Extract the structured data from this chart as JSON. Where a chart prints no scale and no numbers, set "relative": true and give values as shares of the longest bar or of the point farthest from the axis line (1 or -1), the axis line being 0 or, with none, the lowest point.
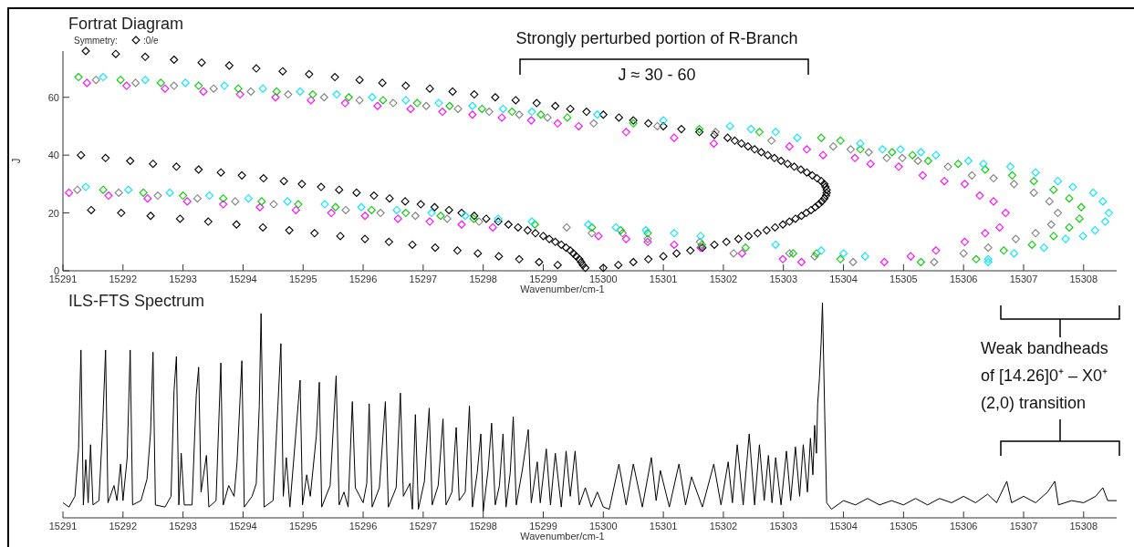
{
  "chart_data": [
    {
      "type": "scatter",
      "title": "Fortrat Diagram",
      "xlabel": "Wavenumber/cm-1",
      "ylabel": "J",
      "xlim": [
        15291,
        15308.55
      ],
      "ylim": [
        0,
        76
      ],
      "xticks": [
        15291,
        15292,
        15293,
        15294,
        15295,
        15296,
        15297,
        15298,
        15299,
        15300,
        15301,
        15302,
        15303,
        15304,
        15305,
        15306,
        15307,
        15308
      ],
      "yticks": [
        0,
        20,
        40,
        60
      ],
      "marker": "diamond",
      "legend": "top left",
      "legend_title": "Symmetry:",
      "annotations": [
        "Strongly perturbed portion of R-Branch",
        "J ≈ 30 - 60"
      ],
      "series": [
        {
          "name": ":0/e",
          "color": "#000000",
          "x": [
            15291.3,
            15291.71,
            15292.12,
            15292.5,
            15292.89,
            15293.26,
            15293.63,
            15293.98,
            15294.34,
            15294.68,
            15294.98,
            15295.3,
            15295.6,
            15295.89,
            15296.18,
            15296.44,
            15296.7,
            15296.96,
            15297.19,
            15297.43,
            15297.64,
            15297.85,
            15298.05,
            15298.25,
            15298.42,
            15298.58,
            15298.74,
            15298.87,
            15299.0,
            15299.1,
            15299.2,
            15299.3,
            15299.38,
            15299.45,
            15299.5,
            15299.55,
            15299.6,
            15299.63,
            15299.66,
            15299.7
          ],
          "values": [
            40,
            39,
            38,
            37,
            36,
            35,
            34,
            33,
            32,
            31,
            30,
            29,
            28,
            27,
            26,
            25,
            24,
            23,
            22,
            21,
            20,
            19,
            18,
            17,
            16,
            15,
            14,
            13,
            12,
            11,
            10,
            9,
            8,
            7,
            6,
            5,
            4,
            3,
            2,
            1
          ]
        },
        {
          "color": "#000000",
          "x": [
            15300.0,
            15300.25,
            15300.5,
            15300.75,
            15301.0,
            15301.22,
            15301.45,
            15301.65,
            15301.85,
            15302.05,
            15302.25,
            15302.42,
            15302.57,
            15302.72,
            15302.86,
            15302.99,
            15303.1,
            15303.2,
            15303.3,
            15303.38,
            15303.46,
            15303.53,
            15303.59,
            15303.64,
            15303.68,
            15303.71,
            15303.72,
            15303.72,
            15303.7,
            15303.68,
            15303.63,
            15303.56,
            15303.48,
            15303.39,
            15303.29,
            15303.18,
            15303.07,
            15302.96,
            15302.85,
            15302.74,
            15302.63,
            15302.52,
            15302.41,
            15302.3,
            15302.19,
            15302.07,
            15301.85,
            15301.6,
            15301.3,
            15301.0,
            15300.75,
            15300.5,
            15300.26,
            15300.0,
            15299.72,
            15299.45,
            15299.2,
            15298.89,
            15298.54,
            15298.2,
            15297.85,
            15297.49,
            15297.11,
            15296.71,
            15296.32,
            15295.94,
            15295.53,
            15295.1,
            15294.66,
            15294.22,
            15293.77,
            15293.31,
            15292.85,
            15292.37,
            15291.88,
            15291.38
          ],
          "values": [
            1,
            2,
            3,
            4,
            5,
            6,
            7,
            8,
            9,
            10,
            11,
            12,
            13,
            14,
            15,
            16,
            17,
            18,
            19,
            20,
            21,
            22,
            23,
            24,
            25,
            26,
            27,
            28,
            29,
            30,
            31,
            32,
            33,
            34,
            35,
            36,
            37,
            38,
            39,
            40,
            41,
            42,
            43,
            44,
            45,
            46,
            47,
            48,
            49,
            50,
            51,
            52,
            53,
            54,
            55,
            56,
            57,
            58,
            59,
            60,
            61,
            62,
            63,
            64,
            65,
            66,
            67,
            68,
            69,
            70,
            71,
            72,
            73,
            74,
            75,
            76
          ]
        },
        {
          "color": "#000000",
          "x": [
            15291.47,
            15291.97,
            15292.46,
            15292.95,
            15293.42,
            15293.89,
            15294.33,
            15294.77,
            15295.19,
            15295.62,
            15296.03,
            15296.43,
            15296.82,
            15297.2,
            15297.57,
            15297.91,
            15298.26,
            15298.6,
            15298.93,
            15299.24
          ],
          "values": [
            21,
            20,
            19,
            18,
            17,
            16,
            15,
            14,
            13,
            12,
            11,
            10,
            9,
            8,
            7,
            6,
            5,
            4,
            3,
            2
          ]
        },
        {
          "color": "#ff00ff",
          "x": [
            15291.4,
            15292.06,
            15292.7,
            15293.34,
            15293.95,
            15294.54,
            15295.13,
            15295.7,
            15296.24,
            15296.79,
            15297.32,
            15297.82,
            15298.31,
            15298.8,
            15299.24,
            15299.59,
            15300.38,
            15301.18,
            15301.84,
            15303.1,
            15303.39,
            15303.66,
            15304.19,
            15304.45,
            15304.92,
            15305.32,
            15305.68,
            15306.02,
            15306.27,
            15306.5,
            15306.7,
            15306.6,
            15306.36,
            15306.02,
            15305.54,
            15305.12,
            15304.68
          ],
          "values": [
            65,
            64,
            63,
            62,
            61,
            60,
            59,
            58,
            57,
            56,
            55,
            54,
            53,
            52,
            51,
            50,
            48,
            46,
            44,
            43,
            42,
            40,
            39,
            37,
            36,
            33,
            31,
            30,
            26,
            24,
            20,
            15,
            13,
            10,
            7,
            5,
            3
          ]
        },
        {
          "color": "#ff00ff",
          "x": [
            15291.1,
            15291.76,
            15292.41,
            15293.07,
            15293.67,
            15294.28,
            15294.88,
            15295.47,
            15296.03,
            15296.58,
            15297.11,
            15297.64,
            15298.16,
            15299.92,
            15300.38,
            15300.74,
            15301.18,
            15301.62,
            15302.31,
            15302.99,
            15303.3
          ],
          "values": [
            27,
            26,
            25,
            24,
            23,
            22,
            21,
            20,
            19,
            18,
            17,
            16,
            15,
            12,
            11,
            10,
            9,
            8,
            6,
            4,
            3
          ]
        },
        {
          "color": "#808080",
          "x": [
            15291.55,
            15292.21,
            15292.85,
            15293.51,
            15294.13,
            15294.75,
            15295.35,
            15295.94,
            15296.5,
            15297.05,
            15297.58,
            15298.1,
            15298.6,
            15299.07,
            15299.84,
            15300.9,
            15301.87,
            15302.8,
            15303.83,
            15304.12,
            15304.42,
            15304.72,
            15304.98,
            15305.24,
            15305.74,
            15306.14,
            15306.5,
            15306.84,
            15307.17,
            15307.43,
            15307.57,
            15307.46,
            15307.2,
            15306.87,
            15306.41,
            15306.0,
            15305.51
          ],
          "values": [
            66,
            65,
            64,
            63,
            62,
            61,
            60,
            59,
            58,
            57,
            56,
            55,
            54,
            53,
            51,
            50,
            48,
            45,
            43,
            42,
            41,
            39,
            39,
            38,
            36,
            33,
            32,
            30,
            27,
            24,
            20,
            16,
            13,
            11,
            8,
            6,
            3
          ]
        },
        {
          "color": "#808080",
          "x": [
            15291.24,
            15291.93,
            15292.58,
            15293.24,
            15293.87,
            15294.51,
            15295.71,
            15296.29,
            15296.87,
            15297.4,
            15297.93,
            15299.39,
            15299.81,
            15300.32,
            15300.74,
            15301.61,
            15302.17,
            15303.1,
            15303.52,
            15304.16
          ],
          "values": [
            28,
            27,
            26,
            25,
            24,
            23,
            21,
            20,
            19,
            18,
            17,
            15,
            13,
            13,
            11,
            10,
            6,
            6,
            5,
            3
          ]
        },
        {
          "color": "#00cc00",
          "x": [
            15291.26,
            15291.96,
            15292.63,
            15293.26,
            15293.92,
            15294.56,
            15295.16,
            15295.76,
            15296.33,
            15296.9,
            15297.44,
            15297.98,
            15298.48,
            15298.96,
            15299.4,
            15300.5,
            15301.6,
            15302.6,
            15303.63,
            15303.95,
            15304.28,
            15304.81,
            15305.15,
            15305.41,
            15305.91,
            15306.36,
            15306.81,
            15307.17,
            15307.5,
            15307.76,
            15307.96,
            15307.93,
            15307.76,
            15307.5,
            15307.14,
            15306.67,
            15306.21
          ],
          "values": [
            67,
            66,
            65,
            64,
            63,
            62,
            61,
            60,
            59,
            58,
            57,
            56,
            55,
            54,
            53,
            51,
            49,
            48,
            46,
            45,
            42,
            41,
            40,
            38,
            37,
            35,
            33,
            31,
            28,
            25,
            22,
            18,
            15,
            12,
            9,
            7,
            4
          ]
        },
        {
          "color": "#00cc00",
          "x": [
            15291.67,
            15292.34,
            15293.0,
            15293.67,
            15294.31,
            15294.92,
            15295.54,
            15296.14,
            15296.71,
            15297.29,
            15297.84,
            15298.86,
            15299.81,
            15300.29,
            15300.74,
            15301.64,
            15302.37,
            15303.16,
            15303.55,
            15303.95,
            15305.29
          ],
          "values": [
            28,
            27,
            26,
            25,
            24,
            23,
            22,
            21,
            20,
            19,
            18,
            16,
            15,
            14,
            13,
            9,
            8,
            6,
            6,
            4,
            3
          ]
        },
        {
          "color": "#00e5ff",
          "x": [
            15291.67,
            15292.37,
            15293.04,
            15293.69,
            15294.33,
            15294.95,
            15295.56,
            15296.15,
            15296.71,
            15297.26,
            15297.82,
            15298.33,
            15298.81,
            15299.9,
            15301.0,
            15302.11,
            15302.46,
            15302.87,
            15303.23,
            15304.28,
            15304.65,
            15304.95,
            15305.29,
            15305.54,
            15306.08,
            15306.33,
            15306.78,
            15307.2,
            15307.57,
            15307.82,
            15308.16,
            15308.32,
            15308.42,
            15308.36,
            15308.19,
            15307.99,
            15307.7,
            15307.34,
            15306.84,
            15306.41
          ],
          "values": [
            67,
            66,
            65,
            64,
            63,
            62,
            61,
            60,
            59,
            58,
            57,
            56,
            55,
            54,
            52,
            50,
            49,
            48,
            46,
            44,
            42,
            42,
            41,
            40,
            38,
            37,
            36,
            34,
            31,
            29,
            27,
            24,
            20,
            17,
            14,
            12,
            11,
            8,
            6,
            4
          ]
        },
        {
          "color": "#00e5ff",
          "x": [
            15291.38,
            15292.09,
            15292.78,
            15293.44,
            15294.09,
            15294.74,
            15295.36,
            15295.97,
            15296.56,
            15297.14,
            15297.7,
            15298.25,
            15298.81,
            15299.75,
            15300.21,
            15300.71,
            15301.18,
            15301.62,
            15302.87,
            15303.63,
            15304.0,
            15304.36,
            15306.41
          ],
          "values": [
            29,
            28,
            27,
            26,
            25,
            24,
            23,
            22,
            21,
            20,
            19,
            18,
            17,
            16,
            15,
            14,
            13,
            12,
            9,
            7,
            6,
            5,
            3
          ]
        }
      ]
    },
    {
      "type": "line",
      "title": "ILS-FTS Spectrum",
      "xlabel": "Wavenumber/cm-1",
      "xlim": [
        15291,
        15308.55
      ],
      "xticks": [
        15291,
        15292,
        15293,
        15294,
        15295,
        15296,
        15297,
        15298,
        15299,
        15300,
        15301,
        15302,
        15303,
        15304,
        15305,
        15306,
        15307,
        15308
      ],
      "relative": true,
      "tick_labels": "x",
      "annotations": [
        "Weak bandheads\nof [14.26]0⁺ – X0⁺\n(2,0) transition"
      ],
      "series": [
        {
          "color": "#000000",
          "x": [
            15291.0,
            15291.1,
            15291.2,
            15291.26,
            15291.3,
            15291.34,
            15291.38,
            15291.42,
            15291.46,
            15291.5,
            15291.6,
            15291.66,
            15291.71,
            15291.75,
            15291.85,
            15291.9,
            15291.96,
            15292.0,
            15292.07,
            15292.12,
            15292.16,
            15292.3,
            15292.4,
            15292.46,
            15292.5,
            15292.54,
            15292.7,
            15292.8,
            15292.85,
            15292.89,
            15292.93,
            15292.97,
            15293.02,
            15293.15,
            15293.22,
            15293.26,
            15293.3,
            15293.39,
            15293.43,
            15293.55,
            15293.63,
            15293.67,
            15293.76,
            15293.85,
            15293.9,
            15293.98,
            15294.02,
            15294.15,
            15294.22,
            15294.27,
            15294.3,
            15294.35,
            15294.5,
            15294.58,
            15294.63,
            15294.67,
            15294.72,
            15294.78,
            15294.95,
            15294.99,
            15295.06,
            15295.12,
            15295.22,
            15295.27,
            15295.31,
            15295.45,
            15295.55,
            15295.6,
            15295.68,
            15295.75,
            15295.82,
            15295.87,
            15296.0,
            15296.06,
            15296.1,
            15296.15,
            15296.27,
            15296.37,
            15296.42,
            15296.55,
            15296.62,
            15296.67,
            15296.78,
            15296.82,
            15296.87,
            15296.92,
            15297.02,
            15297.1,
            15297.15,
            15297.25,
            15297.33,
            15297.38,
            15297.48,
            15297.55,
            15297.6,
            15297.7,
            15297.77,
            15297.82,
            15297.9,
            15297.96,
            15298.0,
            15298.08,
            15298.14,
            15298.2,
            15298.27,
            15298.33,
            15298.38,
            15298.45,
            15298.5,
            15298.55,
            15298.65,
            15298.75,
            15298.8,
            15298.9,
            15298.95,
            15299.05,
            15299.12,
            15299.2,
            15299.3,
            15299.38,
            15299.45,
            15299.53,
            15299.6,
            15299.7,
            15299.8,
            15299.9,
            15300.0,
            15300.1,
            15300.26,
            15300.38,
            15300.5,
            15300.65,
            15300.8,
            15300.88,
            15300.95,
            15301.1,
            15301.26,
            15301.37,
            15301.47,
            15301.65,
            15301.84,
            15301.96,
            15302.08,
            15302.15,
            15302.23,
            15302.33,
            15302.43,
            15302.52,
            15302.6,
            15302.68,
            15302.75,
            15302.81,
            15302.87,
            15302.96,
            15303.05,
            15303.12,
            15303.2,
            15303.27,
            15303.33,
            15303.4,
            15303.45,
            15303.49,
            15303.52,
            15303.55,
            15303.57,
            15303.6,
            15303.63,
            15303.65,
            15303.69,
            15303.72,
            15303.8,
            15304.0,
            15304.2,
            15304.4,
            15304.6,
            15304.8,
            15305.0,
            15305.2,
            15305.4,
            15305.6,
            15305.8,
            15306.0,
            15306.2,
            15306.4,
            15306.55,
            15306.72,
            15306.8,
            15307.0,
            15307.2,
            15307.4,
            15307.52,
            15307.58,
            15307.8,
            15308.0,
            15308.2,
            15308.32,
            15308.4,
            15308.55
          ],
          "values": [
            0.07,
            0.05,
            0.1,
            0.32,
            0.78,
            0.06,
            0.27,
            0.07,
            0.34,
            0.06,
            0.08,
            0.42,
            0.78,
            0.07,
            0.15,
            0.08,
            0.25,
            0.08,
            0.28,
            0.78,
            0.06,
            0.08,
            0.18,
            0.4,
            0.77,
            0.06,
            0.05,
            0.1,
            0.59,
            0.75,
            0.06,
            0.3,
            0.06,
            0.06,
            0.57,
            0.7,
            0.12,
            0.29,
            0.05,
            0.08,
            0.72,
            0.06,
            0.15,
            0.1,
            0.26,
            0.73,
            0.05,
            0.1,
            0.16,
            0.52,
            0.95,
            0.05,
            0.08,
            0.52,
            0.81,
            0.1,
            0.28,
            0.05,
            0.64,
            0.06,
            0.2,
            0.1,
            0.38,
            0.63,
            0.05,
            0.15,
            0.66,
            0.06,
            0.12,
            0.05,
            0.54,
            0.14,
            0.07,
            0.16,
            0.53,
            0.05,
            0.14,
            0.54,
            0.05,
            0.14,
            0.58,
            0.1,
            0.16,
            0.04,
            0.48,
            0.04,
            0.17,
            0.51,
            0.06,
            0.15,
            0.46,
            0.06,
            0.12,
            0.42,
            0.08,
            0.12,
            0.52,
            0.05,
            0.21,
            0.39,
            0.03,
            0.22,
            0.44,
            0.06,
            0.15,
            0.39,
            0.05,
            0.21,
            0.47,
            0.06,
            0.22,
            0.41,
            0.07,
            0.26,
            0.07,
            0.32,
            0.06,
            0.3,
            0.05,
            0.31,
            0.1,
            0.31,
            0.06,
            0.14,
            0.05,
            0.12,
            0.05,
            0.04,
            0.25,
            0.06,
            0.25,
            0.05,
            0.28,
            0.08,
            0.22,
            0.05,
            0.25,
            0.06,
            0.19,
            0.05,
            0.25,
            0.06,
            0.26,
            0.07,
            0.34,
            0.06,
            0.39,
            0.06,
            0.34,
            0.08,
            0.29,
            0.07,
            0.28,
            0.06,
            0.31,
            0.08,
            0.33,
            0.1,
            0.34,
            0.12,
            0.37,
            0.2,
            0.43,
            0.3,
            0.53,
            0.65,
            0.83,
            1.0,
            0.45,
            0.07,
            0.04,
            0.08,
            0.06,
            0.09,
            0.06,
            0.08,
            0.06,
            0.09,
            0.06,
            0.09,
            0.07,
            0.1,
            0.07,
            0.11,
            0.07,
            0.17,
            0.07,
            0.1,
            0.07,
            0.12,
            0.17,
            0.06,
            0.08,
            0.07,
            0.1,
            0.14,
            0.08,
            0.08
          ]
        }
      ]
    }
  ]
}
